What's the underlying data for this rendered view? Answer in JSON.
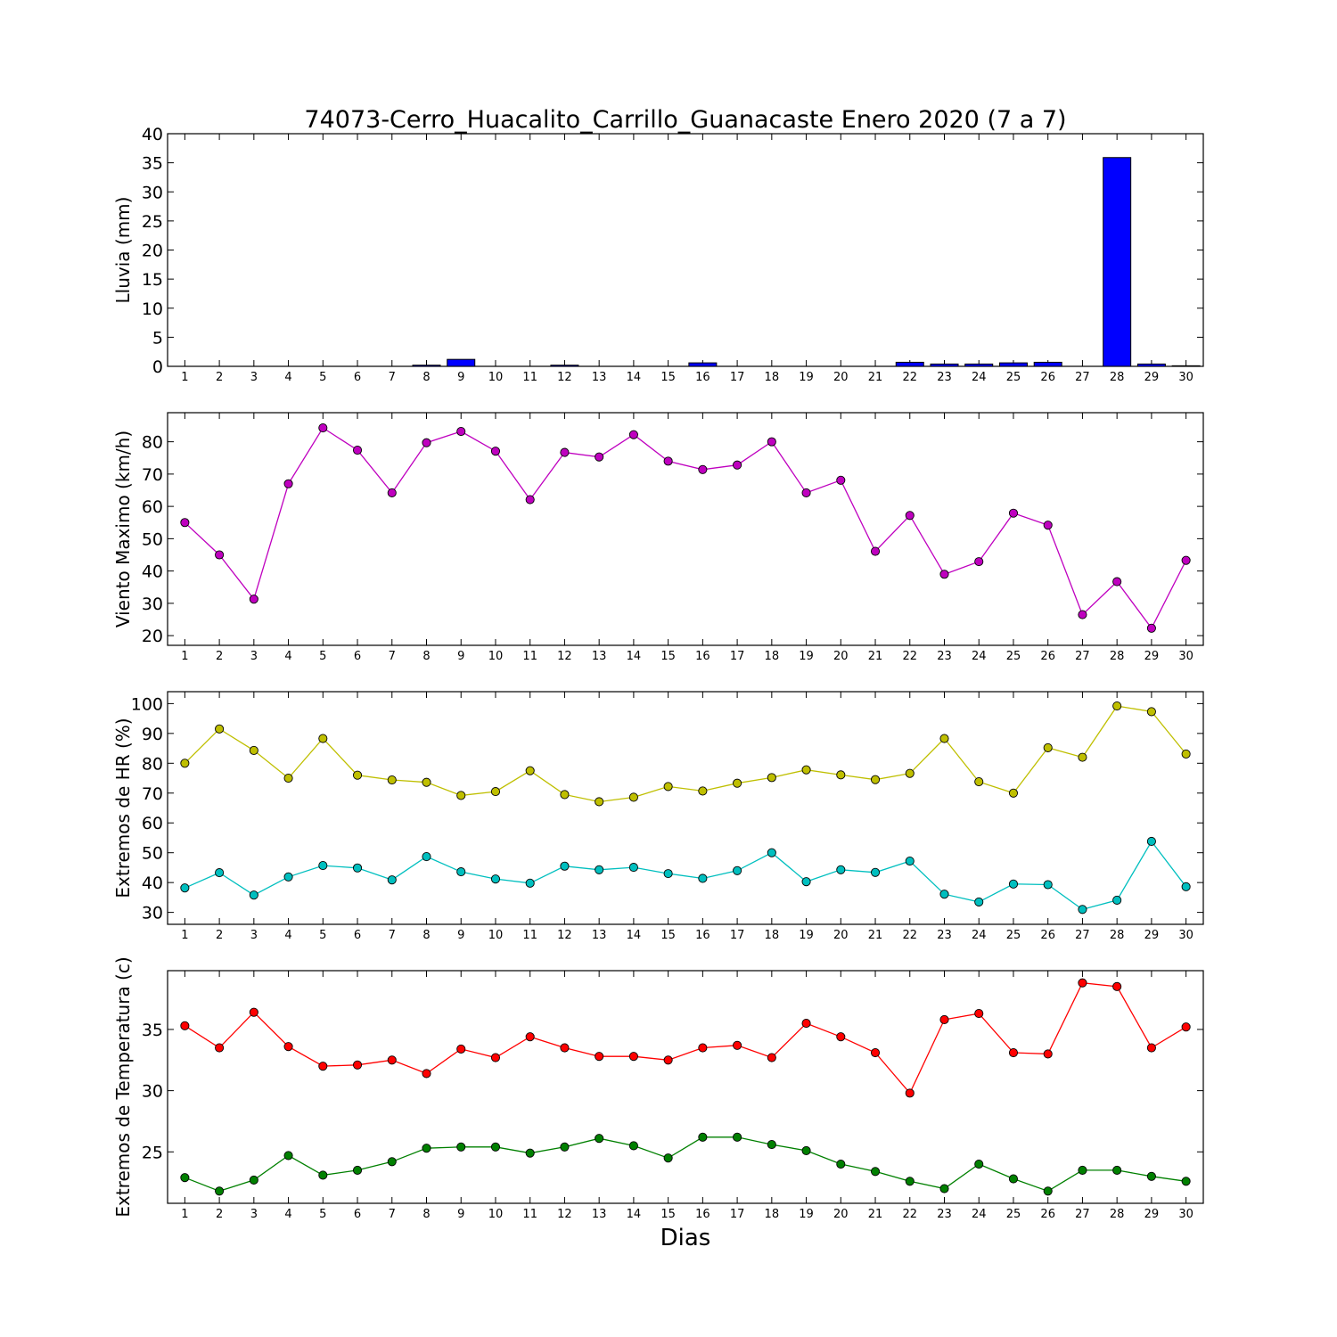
{
  "figure": {
    "title": "74073-Cerro_Huacalito_Carrillo_Guanacaste Enero 2020  (7 a 7)",
    "xlabel": "Dias"
  },
  "chart_data": [
    {
      "type": "bar",
      "ylabel": "Lluvia (mm)",
      "color": "#0000ff",
      "ylim": [
        0,
        40
      ],
      "yticks": [
        0,
        5,
        10,
        15,
        20,
        25,
        30,
        35,
        40
      ],
      "x": [
        1,
        2,
        3,
        4,
        5,
        6,
        7,
        8,
        9,
        10,
        11,
        12,
        13,
        14,
        15,
        16,
        17,
        18,
        19,
        20,
        21,
        22,
        23,
        24,
        25,
        26,
        27,
        28,
        29,
        30
      ],
      "series": [
        {
          "values": [
            0,
            0,
            0,
            0,
            0,
            0,
            0,
            0.2,
            1.2,
            0,
            0,
            0.2,
            0,
            0,
            0,
            0.6,
            0,
            0,
            0,
            0,
            0,
            0.7,
            0.4,
            0.4,
            0.6,
            0.7,
            0,
            35.9,
            0.4,
            0.1
          ]
        }
      ]
    },
    {
      "type": "line",
      "ylabel": "Viento Maximo (km/h)",
      "ylim": [
        17,
        89
      ],
      "yticks": [
        20,
        30,
        40,
        50,
        60,
        70,
        80
      ],
      "x": [
        1,
        2,
        3,
        4,
        5,
        6,
        7,
        8,
        9,
        10,
        11,
        12,
        13,
        14,
        15,
        16,
        17,
        18,
        19,
        20,
        21,
        22,
        23,
        24,
        25,
        26,
        27,
        28,
        29,
        30
      ],
      "series": [
        {
          "color": "#bf00bf",
          "values": [
            55.0,
            45.0,
            31.3,
            67.0,
            84.3,
            77.4,
            64.2,
            79.7,
            83.2,
            77.1,
            62.1,
            76.7,
            75.3,
            82.2,
            74.0,
            71.4,
            72.8,
            80.0,
            64.2,
            68.1,
            46.1,
            57.2,
            39.0,
            42.9,
            57.9,
            54.2,
            26.5,
            36.7,
            22.3,
            43.3
          ]
        }
      ]
    },
    {
      "type": "line",
      "ylabel": "Extremos de HR (%)",
      "ylim": [
        26,
        104
      ],
      "yticks": [
        30,
        40,
        50,
        60,
        70,
        80,
        90,
        100
      ],
      "x": [
        1,
        2,
        3,
        4,
        5,
        6,
        7,
        8,
        9,
        10,
        11,
        12,
        13,
        14,
        15,
        16,
        17,
        18,
        19,
        20,
        21,
        22,
        23,
        24,
        25,
        26,
        27,
        28,
        29,
        30
      ],
      "series": [
        {
          "color": "#bfbf00",
          "values": [
            80.0,
            91.5,
            84.3,
            75.0,
            88.3,
            76.0,
            74.4,
            73.6,
            69.2,
            70.5,
            77.5,
            69.5,
            67.1,
            68.6,
            72.2,
            70.7,
            73.3,
            75.2,
            77.8,
            76.1,
            74.5,
            76.6,
            88.3,
            73.8,
            70.0,
            85.2,
            82.0,
            99.2,
            97.3,
            83.1
          ]
        },
        {
          "color": "#00bfbf",
          "values": [
            38.2,
            43.3,
            35.8,
            41.9,
            45.7,
            44.9,
            40.9,
            48.7,
            43.6,
            41.2,
            39.8,
            45.5,
            44.3,
            45.1,
            43.0,
            41.4,
            44.0,
            50.0,
            40.3,
            44.3,
            43.4,
            47.2,
            36.1,
            33.5,
            39.5,
            39.3,
            31.0,
            34.1,
            53.8,
            38.6
          ]
        }
      ]
    },
    {
      "type": "line",
      "ylabel": "Extremos de Temperatura (c)",
      "ylim": [
        20.8,
        39.8
      ],
      "yticks": [
        25,
        30,
        35
      ],
      "x": [
        1,
        2,
        3,
        4,
        5,
        6,
        7,
        8,
        9,
        10,
        11,
        12,
        13,
        14,
        15,
        16,
        17,
        18,
        19,
        20,
        21,
        22,
        23,
        24,
        25,
        26,
        27,
        28,
        29,
        30
      ],
      "series": [
        {
          "color": "#ff0000",
          "values": [
            35.3,
            33.5,
            36.4,
            33.6,
            32.0,
            32.1,
            32.5,
            31.4,
            33.4,
            32.7,
            34.4,
            33.5,
            32.8,
            32.8,
            32.5,
            33.5,
            33.7,
            32.7,
            35.5,
            34.4,
            33.1,
            29.8,
            35.8,
            36.3,
            33.1,
            33.0,
            38.8,
            38.5,
            33.5,
            35.2
          ]
        },
        {
          "color": "#008000",
          "values": [
            22.9,
            21.8,
            22.7,
            24.7,
            23.1,
            23.5,
            24.2,
            25.3,
            25.4,
            25.4,
            24.9,
            25.4,
            26.1,
            25.5,
            24.5,
            26.2,
            26.2,
            25.6,
            25.1,
            24.0,
            23.4,
            22.6,
            22.0,
            24.0,
            22.8,
            21.8,
            23.5,
            23.5,
            23.0,
            22.6
          ]
        }
      ]
    }
  ]
}
